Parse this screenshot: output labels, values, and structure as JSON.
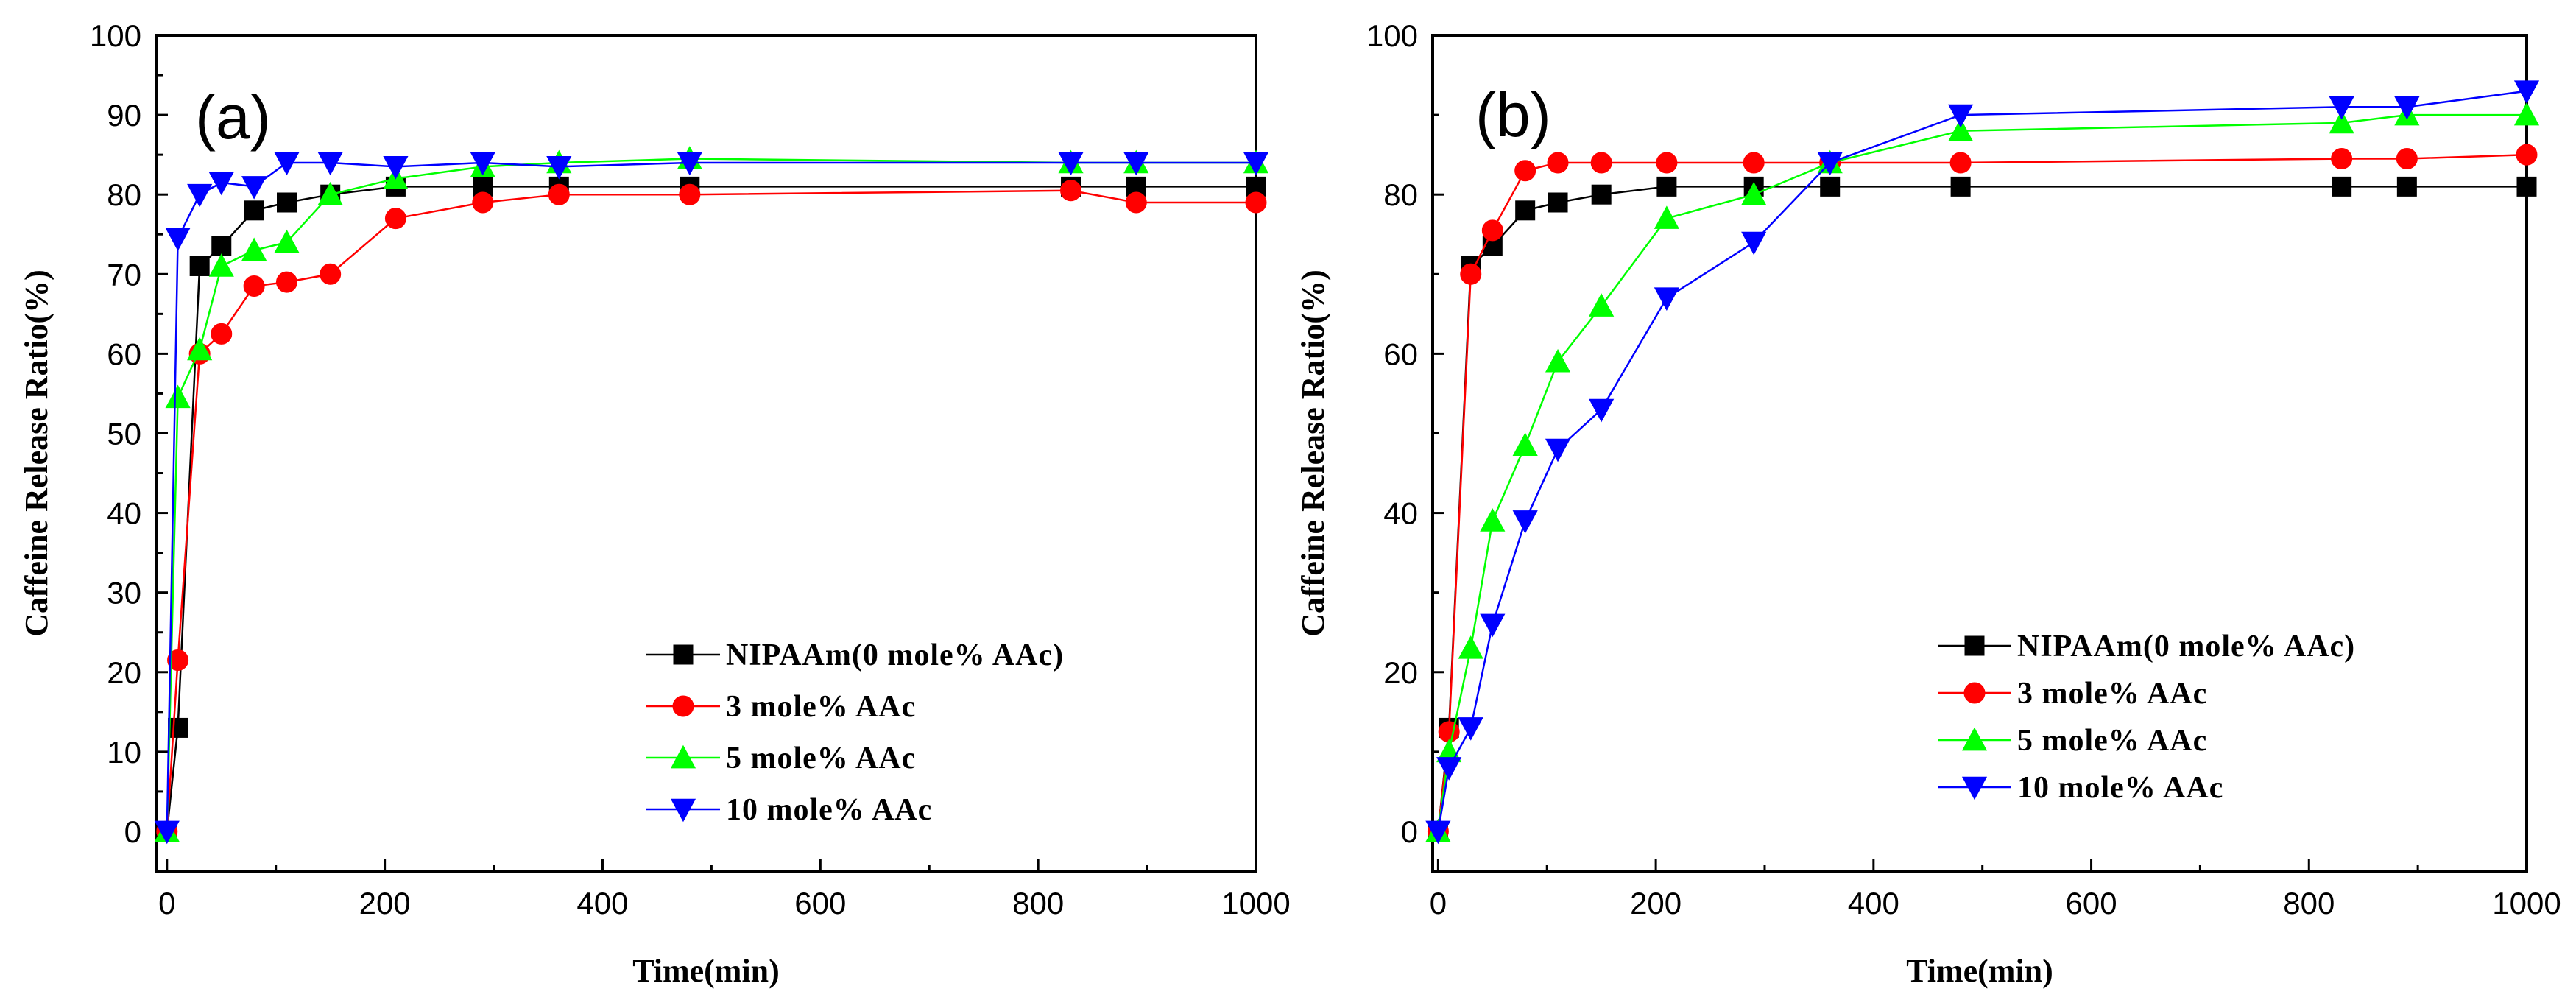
{
  "chart_data": [
    {
      "type": "line",
      "panel_label": "(a)",
      "xlabel": "Time(min)",
      "ylabel": "Caffeine Release Ratio(%)",
      "xlim": [
        -10,
        1000
      ],
      "ylim": [
        -5,
        100
      ],
      "xticks": [
        0,
        200,
        400,
        600,
        800,
        1000
      ],
      "yticks": [
        0,
        10,
        20,
        30,
        40,
        50,
        60,
        70,
        80,
        90,
        100
      ],
      "legend_position": "bottom-right",
      "series": [
        {
          "name": "NIPAAm(0 mole% AAc)",
          "color": "#000000",
          "marker": "square",
          "x": [
            0,
            10,
            30,
            50,
            80,
            110,
            150,
            210,
            290,
            360,
            480,
            830,
            890,
            1000
          ],
          "y": [
            0,
            13,
            71,
            73.5,
            78,
            79,
            80,
            81,
            81,
            81,
            81,
            81,
            81,
            81
          ]
        },
        {
          "name": "3 mole% AAc",
          "color": "#ff0000",
          "marker": "circle",
          "x": [
            0,
            10,
            30,
            50,
            80,
            110,
            150,
            210,
            290,
            360,
            480,
            830,
            890,
            1000
          ],
          "y": [
            0,
            21.5,
            60,
            62.5,
            68.5,
            69,
            70,
            77,
            79,
            80,
            80,
            80.5,
            79,
            79
          ]
        },
        {
          "name": "5 mole% AAc",
          "color": "#00ff00",
          "marker": "triangle-up",
          "x": [
            0,
            10,
            30,
            50,
            80,
            110,
            150,
            210,
            290,
            360,
            480,
            830,
            890,
            1000
          ],
          "y": [
            0,
            54.5,
            60.5,
            71,
            73,
            74,
            80,
            82,
            83.5,
            84,
            84.5,
            84,
            84,
            84
          ]
        },
        {
          "name": "10 mole% AAc",
          "color": "#0000ff",
          "marker": "triangle-down",
          "x": [
            0,
            10,
            30,
            50,
            80,
            110,
            150,
            210,
            290,
            360,
            480,
            830,
            890,
            1000
          ],
          "y": [
            0,
            74.5,
            80,
            81.5,
            81,
            84,
            84,
            83.5,
            84,
            83.5,
            84,
            84,
            84,
            84
          ]
        }
      ]
    },
    {
      "type": "line",
      "panel_label": "(b)",
      "xlabel": "Time(min)",
      "ylabel": "Caffeine Release Ratio(%)",
      "xlim": [
        -5,
        1000
      ],
      "ylim": [
        -5,
        100
      ],
      "xticks": [
        0,
        200,
        400,
        600,
        800,
        1000
      ],
      "yticks": [
        0,
        20,
        40,
        60,
        80,
        100
      ],
      "legend_position": "bottom-right",
      "series": [
        {
          "name": "NIPAAm(0 mole% AAc)",
          "color": "#000000",
          "marker": "square",
          "x": [
            0,
            10,
            30,
            50,
            80,
            110,
            150,
            210,
            290,
            360,
            480,
            830,
            890,
            1000
          ],
          "y": [
            0,
            13,
            71,
            73.5,
            78,
            79,
            80,
            81,
            81,
            81,
            81,
            81,
            81,
            81
          ]
        },
        {
          "name": "3 mole% AAc",
          "color": "#ff0000",
          "marker": "circle",
          "x": [
            0,
            10,
            30,
            50,
            80,
            110,
            150,
            210,
            290,
            360,
            480,
            830,
            890,
            1000
          ],
          "y": [
            0,
            12.5,
            70,
            75.5,
            83,
            84,
            84,
            84,
            84,
            84,
            84,
            84.5,
            84.5,
            85
          ]
        },
        {
          "name": "5 mole% AAc",
          "color": "#00ff00",
          "marker": "triangle-up",
          "x": [
            0,
            10,
            30,
            50,
            80,
            110,
            150,
            210,
            290,
            360,
            480,
            830,
            890,
            1000
          ],
          "y": [
            0,
            10,
            23,
            39,
            48.5,
            59,
            66,
            77,
            80,
            84,
            88,
            89,
            90,
            90
          ]
        },
        {
          "name": "10 mole% AAc",
          "color": "#0000ff",
          "marker": "triangle-down",
          "x": [
            0,
            10,
            30,
            50,
            80,
            110,
            150,
            210,
            290,
            360,
            480,
            830,
            890,
            1000
          ],
          "y": [
            0,
            8,
            13,
            26,
            39,
            48,
            53,
            67,
            74,
            84,
            90,
            91,
            91,
            93
          ]
        }
      ]
    }
  ]
}
